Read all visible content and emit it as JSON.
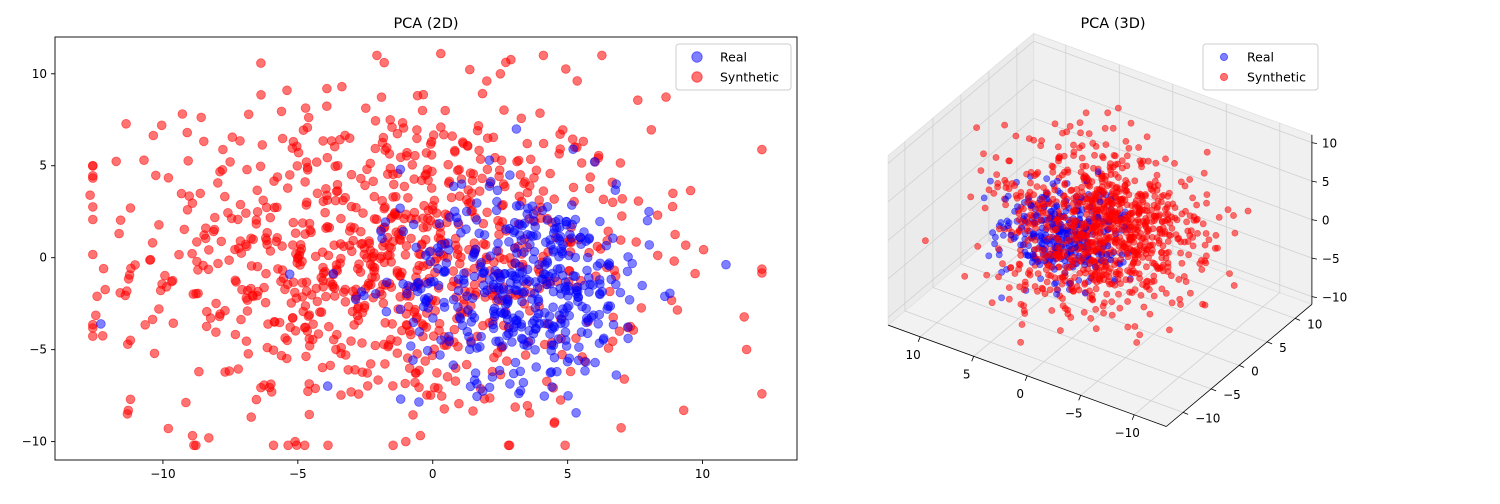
{
  "chart_data": [
    {
      "type": "scatter",
      "title": "PCA (2D)",
      "xlabel": "",
      "ylabel": "",
      "xlim": [
        -14,
        13.5
      ],
      "ylim": [
        -11,
        12
      ],
      "x_ticks": [
        -10,
        -5,
        0,
        5,
        10
      ],
      "y_ticks": [
        -10,
        -5,
        0,
        5,
        10
      ],
      "x_tick_labels": [
        "−10",
        "−5",
        "0",
        "5",
        "10"
      ],
      "y_tick_labels": [
        "−10",
        "−5",
        "0",
        "5",
        "10"
      ],
      "grid": false,
      "legend": "top-right",
      "series": [
        {
          "name": "Real",
          "color": "#0000ff",
          "alpha": 0.5,
          "cluster": {
            "center": [
              3.5,
              -1.5
            ],
            "spread": [
              2.3,
              2.6
            ],
            "count": 420
          },
          "points": [
            [
              -12.3,
              -3.6
            ],
            [
              5.2,
              5.9
            ],
            [
              3.1,
              7.0
            ],
            [
              6.8,
              4.0
            ],
            [
              2.6,
              -4.8
            ],
            [
              1.4,
              -7.0
            ],
            [
              4.6,
              -6.2
            ],
            [
              3.0,
              -6.3
            ],
            [
              6.2,
              -2.0
            ],
            [
              -5.3,
              -0.9
            ],
            [
              -1.2,
              4.8
            ],
            [
              2.1,
              5.3
            ]
          ]
        },
        {
          "name": "Synthetic",
          "color": "#ff0000",
          "alpha": 0.55,
          "cluster": {
            "center": [
              -1.5,
              0.0
            ],
            "spread": [
              4.7,
              4.4
            ],
            "count": 900
          },
          "points": [
            [
              -12.7,
              3.4
            ],
            [
              -12.2,
              -0.6
            ],
            [
              -11.2,
              2.7
            ],
            [
              -11.2,
              -7.7
            ],
            [
              -10.7,
              5.3
            ],
            [
              -9.1,
              6.8
            ],
            [
              -5.4,
              9.1
            ],
            [
              -1.8,
              10.6
            ],
            [
              0.3,
              11.1
            ],
            [
              4.1,
              11.0
            ],
            [
              12.2,
              -7.4
            ],
            [
              9.3,
              -8.3
            ],
            [
              8.9,
              3.5
            ],
            [
              -1.0,
              -10.0
            ],
            [
              -5.1,
              -10.0
            ],
            [
              -8.3,
              -9.8
            ],
            [
              4.5,
              -9.0
            ],
            [
              7.1,
              -6.6
            ]
          ]
        }
      ]
    },
    {
      "type": "scatter",
      "projection": "3d",
      "title": "PCA (3D)",
      "xlabel": "",
      "ylabel": "",
      "zlabel": "",
      "x_ticks": [
        -10,
        -5,
        0,
        5,
        10
      ],
      "y_ticks": [
        -10,
        -5,
        0,
        5,
        10
      ],
      "z_ticks": [
        -10,
        -5,
        0,
        5,
        10
      ],
      "x_tick_labels": [
        "−10",
        "−5",
        "0",
        "5",
        "10"
      ],
      "y_tick_labels": [
        "−10",
        "−5",
        "0",
        "5",
        "10"
      ],
      "z_tick_labels": [
        "−10",
        "−5",
        "0",
        "5",
        "10"
      ],
      "xlim": [
        -13,
        13
      ],
      "ylim": [
        -13,
        13
      ],
      "zlim": [
        -11,
        11
      ],
      "grid": true,
      "legend": "top-right",
      "series": [
        {
          "name": "Real",
          "color": "#0000ff",
          "alpha": 0.5,
          "cluster": {
            "center": [
              3.0,
              -1.0,
              -1.5
            ],
            "spread": [
              2.5,
              2.5,
              2.5
            ],
            "count": 300
          }
        },
        {
          "name": "Synthetic",
          "color": "#ff0000",
          "alpha": 0.55,
          "cluster": {
            "center": [
              0.0,
              0.0,
              0.0
            ],
            "spread": [
              4.2,
              4.2,
              4.0
            ],
            "count": 1000
          }
        }
      ]
    }
  ]
}
